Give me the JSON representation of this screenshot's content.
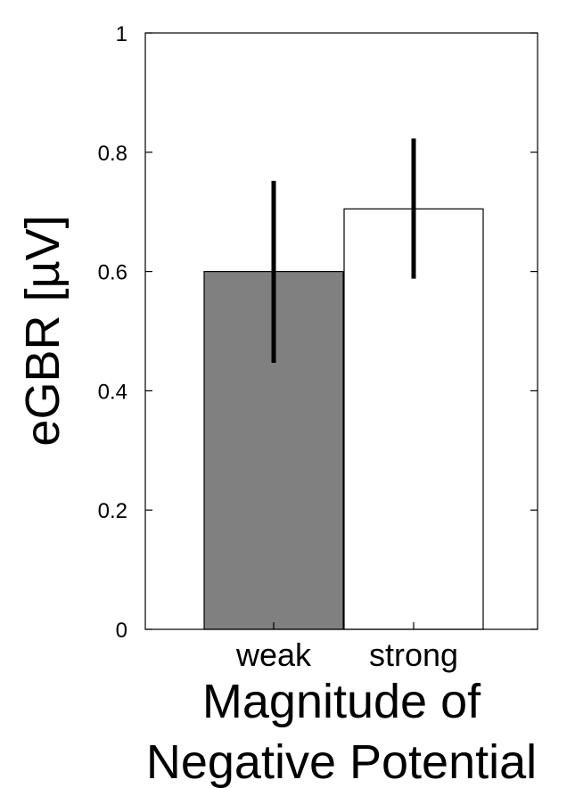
{
  "chart_data": {
    "type": "bar",
    "categories": [
      "weak",
      "strong"
    ],
    "values": [
      0.6,
      0.705
    ],
    "error_bars": [
      {
        "low": 0.447,
        "high": 0.752
      },
      {
        "low": 0.588,
        "high": 0.823
      }
    ],
    "bar_colors": [
      "#808080",
      "#ffffff"
    ],
    "ylabel": "eGBR [µV]",
    "xlabel_lines": [
      "Magnitude of",
      "Negative Potential"
    ],
    "ylim": [
      0,
      1
    ],
    "yticks": [
      {
        "value": 0,
        "label": "0"
      },
      {
        "value": 0.2,
        "label": "0.2"
      },
      {
        "value": 0.4,
        "label": "0.4"
      },
      {
        "value": 0.6,
        "label": "0.6"
      },
      {
        "value": 0.8,
        "label": "0.8"
      },
      {
        "value": 1,
        "label": "1"
      }
    ],
    "grid": false
  }
}
